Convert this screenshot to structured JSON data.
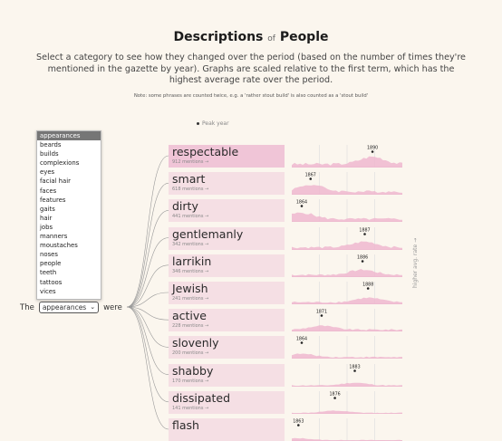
{
  "header": {
    "title_a": "Descriptions",
    "title_of": "of",
    "title_b": "People",
    "intro": "Select a category to see how they changed over the period (based on the number of times they're mentioned in the gazette by year). Graphs are scaled relative to the first term, which has the highest average rate over the period.",
    "note": "Note: some phrases are counted twice, e.g. a 'rather stout build' is also counted as a 'stout build'"
  },
  "legend": {
    "peak_label": "Peak year"
  },
  "category_select": {
    "options": [
      "appearances",
      "beards",
      "builds",
      "complexions",
      "eyes",
      "facial hair",
      "faces",
      "features",
      "gaits",
      "hair",
      "jobs",
      "manners",
      "moustaches",
      "noses",
      "people",
      "teeth",
      "tattoos",
      "vices"
    ],
    "selected": "appearances"
  },
  "sentence": {
    "prefix": "The",
    "suffix": "were"
  },
  "axis_note": "higher avg. rate →",
  "terms": [
    {
      "term": "respectable",
      "mentions": "912 mentions →",
      "peak_year": "1890",
      "peak_pos": 0.73
    },
    {
      "term": "smart",
      "mentions": "618 mentions →",
      "peak_year": "1867",
      "peak_pos": 0.17
    },
    {
      "term": "dirty",
      "mentions": "441 mentions →",
      "peak_year": "1864",
      "peak_pos": 0.09
    },
    {
      "term": "gentlemanly",
      "mentions": "342 mentions →",
      "peak_year": "1887",
      "peak_pos": 0.66
    },
    {
      "term": "larrikin",
      "mentions": "346 mentions →",
      "peak_year": "1886",
      "peak_pos": 0.64
    },
    {
      "term": "Jewish",
      "mentions": "241 mentions →",
      "peak_year": "1888",
      "peak_pos": 0.69
    },
    {
      "term": "active",
      "mentions": "228 mentions →",
      "peak_year": "1871",
      "peak_pos": 0.27
    },
    {
      "term": "slovenly",
      "mentions": "200 mentions →",
      "peak_year": "1864",
      "peak_pos": 0.09
    },
    {
      "term": "shabby",
      "mentions": "170 mentions →",
      "peak_year": "1883",
      "peak_pos": 0.57
    },
    {
      "term": "dissipated",
      "mentions": "141 mentions →",
      "peak_year": "1876",
      "peak_pos": 0.39
    },
    {
      "term": "flash",
      "mentions": "",
      "peak_year": "1863",
      "peak_pos": 0.06
    }
  ]
}
